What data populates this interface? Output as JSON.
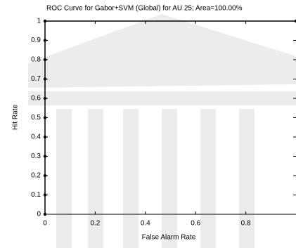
{
  "chart_data": {
    "type": "line",
    "title": "ROC Curve for Gabor+SVM (Global) for AU 25; Area=100.00%",
    "x_label": "False Alarm Rate",
    "y_label": "Hit Rate",
    "x": [
      0,
      0,
      0,
      0,
      0,
      0,
      0,
      0,
      0,
      0,
      0,
      1
    ],
    "series": [
      {
        "color": "#000000",
        "values": [
          0,
          0.1,
          0.2,
          0.3,
          0.4,
          0.5,
          0.6,
          0.7,
          0.8,
          0.9,
          1,
          1
        ]
      }
    ],
    "xlim": [
      0,
      1
    ],
    "ylim": [
      0,
      1
    ],
    "xticks": [
      0,
      0.2,
      0.4,
      0.6,
      0.8
    ],
    "yticks": [
      0,
      0.1,
      0.2,
      0.3,
      0.4,
      0.5,
      0.6,
      0.7,
      0.8,
      0.9,
      1
    ]
  }
}
